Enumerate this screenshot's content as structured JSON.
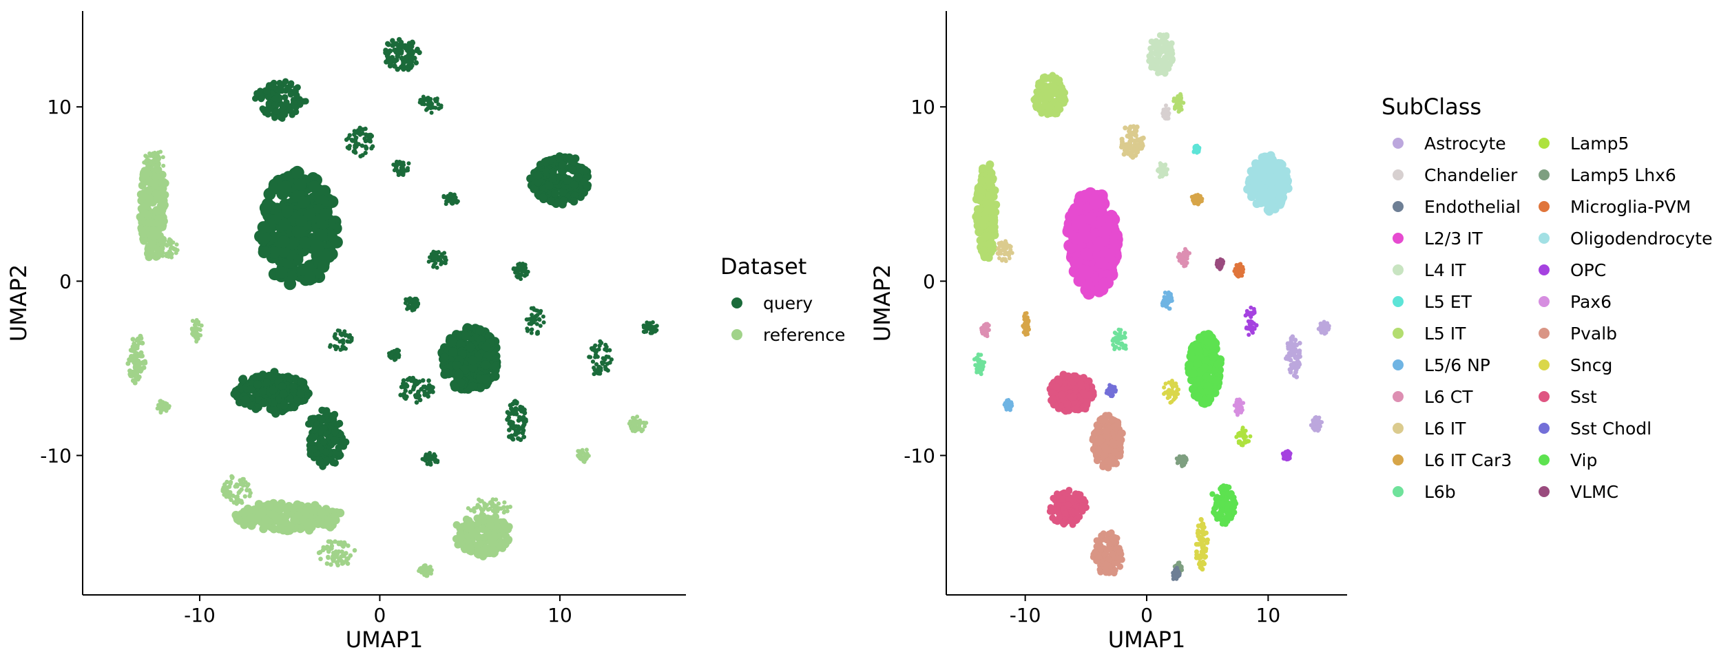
{
  "figure": {
    "background": "#ffffff"
  },
  "chart_data": [
    {
      "type": "scatter",
      "title": "",
      "xlabel": "UMAP1",
      "ylabel": "UMAP2",
      "xlim": [
        -16.5,
        17
      ],
      "ylim": [
        -18,
        15.5
      ],
      "xticks": [
        -10,
        0,
        10
      ],
      "yticks": [
        -10,
        0,
        10
      ],
      "xtick_labels": [
        "-10",
        "0",
        "10"
      ],
      "ytick_labels": [
        "-10",
        "0",
        "10"
      ],
      "grid": false,
      "legend": {
        "title": "Dataset",
        "position": "right",
        "columns": 1,
        "entries": [
          {
            "name": "query",
            "color": "#1b6b3a"
          },
          {
            "name": "reference",
            "color": "#a1d38a"
          }
        ]
      },
      "series": [
        {
          "name": "query",
          "color": "#1b6b3a",
          "clusters": [
            {
              "x": 1.2,
              "y": 13.0,
              "sx": 1.0,
              "sy": 0.9
            },
            {
              "x": -5.5,
              "y": 10.4,
              "sx": 1.4,
              "sy": 1.0
            },
            {
              "x": -1.1,
              "y": 8.0,
              "sx": 0.8,
              "sy": 0.8
            },
            {
              "x": 1.2,
              "y": 6.5,
              "sx": 0.4,
              "sy": 0.4
            },
            {
              "x": 2.8,
              "y": 10.2,
              "sx": 0.6,
              "sy": 0.5
            },
            {
              "x": -4.5,
              "y": 3.0,
              "sx": 2.1,
              "sy": 3.3
            },
            {
              "x": 10.0,
              "y": 5.8,
              "sx": 1.6,
              "sy": 1.4
            },
            {
              "x": 4.0,
              "y": 4.7,
              "sx": 0.4,
              "sy": 0.3
            },
            {
              "x": 3.2,
              "y": 1.3,
              "sx": 0.5,
              "sy": 0.5
            },
            {
              "x": 1.8,
              "y": -1.3,
              "sx": 0.4,
              "sy": 0.4
            },
            {
              "x": 7.8,
              "y": 0.6,
              "sx": 0.4,
              "sy": 0.4
            },
            {
              "x": 8.6,
              "y": -2.3,
              "sx": 0.5,
              "sy": 0.8
            },
            {
              "x": 12.2,
              "y": -4.4,
              "sx": 0.6,
              "sy": 1.0
            },
            {
              "x": 15.0,
              "y": -2.7,
              "sx": 0.4,
              "sy": 0.3
            },
            {
              "x": -2.2,
              "y": -3.4,
              "sx": 0.7,
              "sy": 0.6
            },
            {
              "x": 5.0,
              "y": -4.5,
              "sx": 1.6,
              "sy": 1.8
            },
            {
              "x": 2.0,
              "y": -6.2,
              "sx": 1.0,
              "sy": 0.7
            },
            {
              "x": 7.6,
              "y": -8.0,
              "sx": 0.6,
              "sy": 1.2
            },
            {
              "x": -6.0,
              "y": -6.4,
              "sx": 2.1,
              "sy": 1.1
            },
            {
              "x": -3.0,
              "y": -9.0,
              "sx": 1.1,
              "sy": 1.6
            },
            {
              "x": 2.8,
              "y": -10.2,
              "sx": 0.4,
              "sy": 0.3
            },
            {
              "x": 0.8,
              "y": -4.2,
              "sx": 0.3,
              "sy": 0.3
            }
          ]
        },
        {
          "name": "reference",
          "color": "#a1d38a",
          "clusters": [
            {
              "x": -12.6,
              "y": 4.2,
              "sx": 0.7,
              "sy": 3.0
            },
            {
              "x": -12.5,
              "y": 7.0,
              "sx": 0.6,
              "sy": 0.6
            },
            {
              "x": -11.8,
              "y": 1.8,
              "sx": 0.6,
              "sy": 0.6
            },
            {
              "x": -13.5,
              "y": -4.5,
              "sx": 0.5,
              "sy": 1.5
            },
            {
              "x": -10.2,
              "y": -2.8,
              "sx": 0.3,
              "sy": 0.6
            },
            {
              "x": -12.0,
              "y": -7.2,
              "sx": 0.3,
              "sy": 0.3
            },
            {
              "x": -5.0,
              "y": -13.5,
              "sx": 3.0,
              "sy": 0.8
            },
            {
              "x": -2.4,
              "y": -15.6,
              "sx": 1.0,
              "sy": 0.7
            },
            {
              "x": -8.0,
              "y": -12.0,
              "sx": 0.8,
              "sy": 0.8
            },
            {
              "x": 5.7,
              "y": -14.6,
              "sx": 1.6,
              "sy": 1.2
            },
            {
              "x": 6.0,
              "y": -13.0,
              "sx": 1.2,
              "sy": 0.5
            },
            {
              "x": 14.3,
              "y": -8.2,
              "sx": 0.5,
              "sy": 0.4
            },
            {
              "x": 11.3,
              "y": -10.0,
              "sx": 0.3,
              "sy": 0.3
            },
            {
              "x": 2.5,
              "y": -16.6,
              "sx": 0.4,
              "sy": 0.3
            }
          ]
        }
      ]
    },
    {
      "type": "scatter",
      "title": "",
      "xlabel": "UMAP1",
      "ylabel": "UMAP2",
      "xlim": [
        -16.5,
        16.5
      ],
      "ylim": [
        -18,
        15.5
      ],
      "xticks": [
        -10,
        0,
        10
      ],
      "yticks": [
        -10,
        0,
        10
      ],
      "xtick_labels": [
        "-10",
        "0",
        "10"
      ],
      "ytick_labels": [
        "-10",
        "0",
        "10"
      ],
      "grid": false,
      "legend": {
        "title": "SubClass",
        "position": "right",
        "columns": 2,
        "entries": [
          {
            "name": "Astrocyte",
            "color": "#bca7dd"
          },
          {
            "name": "Chandelier",
            "color": "#d7d0d0"
          },
          {
            "name": "Endothelial",
            "color": "#6e7f95"
          },
          {
            "name": "L2/3 IT",
            "color": "#e64bd0"
          },
          {
            "name": "L4 IT",
            "color": "#c8e4c1"
          },
          {
            "name": "L5 ET",
            "color": "#5de4d7"
          },
          {
            "name": "L5 IT",
            "color": "#b3dd70"
          },
          {
            "name": "L5/6 NP",
            "color": "#6fb4e3"
          },
          {
            "name": "L6 CT",
            "color": "#dd8fb2"
          },
          {
            "name": "L6 IT",
            "color": "#dbcb8e"
          },
          {
            "name": "L6 IT Car3",
            "color": "#d7a548"
          },
          {
            "name": "L6b",
            "color": "#6fe29b"
          },
          {
            "name": "Lamp5",
            "color": "#aee23e"
          },
          {
            "name": "Lamp5 Lhx6",
            "color": "#7e9f80"
          },
          {
            "name": "Microglia-PVM",
            "color": "#e0753b"
          },
          {
            "name": "Oligodendrocyte",
            "color": "#a2e0e4"
          },
          {
            "name": "OPC",
            "color": "#a542e0"
          },
          {
            "name": "Pax6",
            "color": "#d68ee0"
          },
          {
            "name": "Pvalb",
            "color": "#d99585"
          },
          {
            "name": "Sncg",
            "color": "#dad74a"
          },
          {
            "name": "Sst",
            "color": "#df5582"
          },
          {
            "name": "Sst Chodl",
            "color": "#736fd8"
          },
          {
            "name": "Vip",
            "color": "#5de250"
          },
          {
            "name": "VLMC",
            "color": "#9a4b7e"
          }
        ]
      },
      "series": [
        {
          "name": "L4 IT",
          "color": "#c8e4c1",
          "clusters": [
            {
              "x": 1.2,
              "y": 13.0,
              "sx": 1.0,
              "sy": 1.2
            },
            {
              "x": 1.3,
              "y": 6.4,
              "sx": 0.4,
              "sy": 0.4
            }
          ]
        },
        {
          "name": "L5 IT",
          "color": "#b3dd70",
          "clusters": [
            {
              "x": -8.0,
              "y": 10.6,
              "sx": 1.3,
              "sy": 1.2
            },
            {
              "x": 2.6,
              "y": 10.2,
              "sx": 0.4,
              "sy": 0.5
            },
            {
              "x": -13.2,
              "y": 4.0,
              "sx": 0.8,
              "sy": 2.8
            }
          ]
        },
        {
          "name": "L6 IT",
          "color": "#dbcb8e",
          "clusters": [
            {
              "x": -1.2,
              "y": 8.0,
              "sx": 0.9,
              "sy": 0.9
            },
            {
              "x": -11.7,
              "y": 1.7,
              "sx": 0.6,
              "sy": 0.6
            }
          ]
        },
        {
          "name": "L6 IT Car3",
          "color": "#d7a548",
          "clusters": [
            {
              "x": 4.1,
              "y": 4.7,
              "sx": 0.4,
              "sy": 0.3
            },
            {
              "x": -9.9,
              "y": -2.5,
              "sx": 0.3,
              "sy": 0.6
            }
          ]
        },
        {
          "name": "Oligodendrocyte",
          "color": "#a2e0e4",
          "clusters": [
            {
              "x": 10.0,
              "y": 5.6,
              "sx": 1.6,
              "sy": 1.6
            }
          ]
        },
        {
          "name": "L2/3 IT",
          "color": "#e64bd0",
          "clusters": [
            {
              "x": -4.5,
              "y": 2.2,
              "sx": 2.0,
              "sy": 3.0
            }
          ]
        },
        {
          "name": "L6 CT",
          "color": "#dd8fb2",
          "clusters": [
            {
              "x": 3.1,
              "y": 1.3,
              "sx": 0.5,
              "sy": 0.5
            },
            {
              "x": -13.3,
              "y": -2.8,
              "sx": 0.3,
              "sy": 0.4
            }
          ]
        },
        {
          "name": "L5/6 NP",
          "color": "#6fb4e3",
          "clusters": [
            {
              "x": 1.7,
              "y": -1.1,
              "sx": 0.4,
              "sy": 0.5
            },
            {
              "x": -11.4,
              "y": -7.1,
              "sx": 0.3,
              "sy": 0.3
            }
          ]
        },
        {
          "name": "Microglia-PVM",
          "color": "#e0753b",
          "clusters": [
            {
              "x": 7.6,
              "y": 0.6,
              "sx": 0.4,
              "sy": 0.4
            }
          ]
        },
        {
          "name": "OPC",
          "color": "#a542e0",
          "clusters": [
            {
              "x": 8.6,
              "y": -2.3,
              "sx": 0.5,
              "sy": 0.8
            },
            {
              "x": 11.5,
              "y": -10.0,
              "sx": 0.3,
              "sy": 0.3
            }
          ]
        },
        {
          "name": "Astrocyte",
          "color": "#bca7dd",
          "clusters": [
            {
              "x": 12.1,
              "y": -4.3,
              "sx": 0.6,
              "sy": 1.2
            },
            {
              "x": 14.6,
              "y": -2.7,
              "sx": 0.4,
              "sy": 0.3
            },
            {
              "x": 14.0,
              "y": -8.2,
              "sx": 0.4,
              "sy": 0.4
            }
          ]
        },
        {
          "name": "L6b",
          "color": "#6fe29b",
          "clusters": [
            {
              "x": -2.2,
              "y": -3.4,
              "sx": 0.7,
              "sy": 0.6
            },
            {
              "x": -13.8,
              "y": -4.8,
              "sx": 0.4,
              "sy": 0.6
            }
          ]
        },
        {
          "name": "Vip",
          "color": "#5de250",
          "clusters": [
            {
              "x": 4.8,
              "y": -5.0,
              "sx": 1.3,
              "sy": 2.0
            },
            {
              "x": 6.3,
              "y": -12.8,
              "sx": 1.0,
              "sy": 1.1
            }
          ]
        },
        {
          "name": "Sncg",
          "color": "#dad74a",
          "clusters": [
            {
              "x": 2.0,
              "y": -6.3,
              "sx": 0.6,
              "sy": 0.6
            },
            {
              "x": 4.5,
              "y": -15.2,
              "sx": 0.5,
              "sy": 1.5
            }
          ]
        },
        {
          "name": "Lamp5",
          "color": "#aee23e",
          "clusters": [
            {
              "x": 7.9,
              "y": -8.9,
              "sx": 0.5,
              "sy": 0.5
            }
          ]
        },
        {
          "name": "Sst",
          "color": "#df5582",
          "clusters": [
            {
              "x": -6.2,
              "y": -6.4,
              "sx": 1.8,
              "sy": 1.1
            },
            {
              "x": -6.5,
              "y": -13.0,
              "sx": 1.5,
              "sy": 1.0
            }
          ]
        },
        {
          "name": "Pvalb",
          "color": "#d99585",
          "clusters": [
            {
              "x": -3.2,
              "y": -9.2,
              "sx": 1.2,
              "sy": 1.5
            },
            {
              "x": -3.2,
              "y": -15.6,
              "sx": 1.2,
              "sy": 1.2
            }
          ]
        },
        {
          "name": "Sst Chodl",
          "color": "#736fd8",
          "clusters": [
            {
              "x": -2.9,
              "y": -6.3,
              "sx": 0.3,
              "sy": 0.3
            }
          ]
        },
        {
          "name": "Lamp5 Lhx6",
          "color": "#7e9f80",
          "clusters": [
            {
              "x": 2.9,
              "y": -10.3,
              "sx": 0.4,
              "sy": 0.3
            },
            {
              "x": 2.6,
              "y": -16.5,
              "sx": 0.3,
              "sy": 0.3
            }
          ]
        },
        {
          "name": "Pax6",
          "color": "#d68ee0",
          "clusters": [
            {
              "x": 7.6,
              "y": -7.2,
              "sx": 0.3,
              "sy": 0.5
            }
          ]
        },
        {
          "name": "VLMC",
          "color": "#9a4b7e",
          "clusters": [
            {
              "x": 6.0,
              "y": 1.0,
              "sx": 0.3,
              "sy": 0.3
            }
          ]
        },
        {
          "name": "Chandelier",
          "color": "#d7d0d0",
          "clusters": [
            {
              "x": 1.6,
              "y": 9.6,
              "sx": 0.3,
              "sy": 0.3
            }
          ]
        },
        {
          "name": "Endothelial",
          "color": "#6e7f95",
          "clusters": [
            {
              "x": 2.4,
              "y": -16.8,
              "sx": 0.3,
              "sy": 0.3
            }
          ]
        },
        {
          "name": "L5 ET",
          "color": "#5de4d7",
          "clusters": [
            {
              "x": 4.1,
              "y": 7.6,
              "sx": 0.2,
              "sy": 0.2
            }
          ]
        }
      ]
    }
  ]
}
